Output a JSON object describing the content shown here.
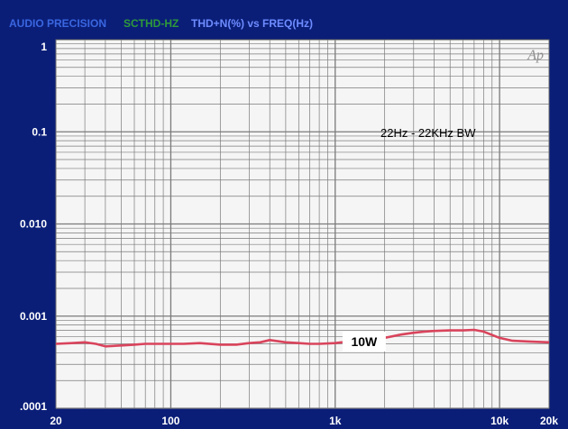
{
  "header": {
    "brand": "AUDIO PRECISION",
    "code": "SCTHD-HZ",
    "title": "THD+N(%) vs FREQ(Hz)"
  },
  "logo": "Ap",
  "colors": {
    "background": "#0a1e78",
    "plot_area": "#f5f5f5",
    "grid": "#7a7a7a",
    "trace": "#d9445c",
    "brand_text": "#3a66e0",
    "code_text": "#2e9a3a",
    "title_text": "#6e8cff"
  },
  "chart_data": {
    "type": "line",
    "xscale": "log",
    "yscale": "log",
    "xlim": [
      20,
      20000
    ],
    "ylim": [
      0.0001,
      1
    ],
    "x_ticks": [
      {
        "value": 20,
        "label": "20"
      },
      {
        "value": 100,
        "label": "100"
      },
      {
        "value": 1000,
        "label": "1k"
      },
      {
        "value": 10000,
        "label": "10k"
      },
      {
        "value": 20000,
        "label": "20k"
      }
    ],
    "y_ticks": [
      {
        "value": 1,
        "label": "1"
      },
      {
        "value": 0.1,
        "label": "0.1"
      },
      {
        "value": 0.01,
        "label": "0.010"
      },
      {
        "value": 0.001,
        "label": "0.001"
      },
      {
        "value": 0.0001,
        "label": ".0001"
      }
    ],
    "grid": true,
    "annotations": [
      "22Hz - 22KHz BW"
    ],
    "series": [
      {
        "name": "10W",
        "color": "#d9445c",
        "x": [
          20,
          25,
          30,
          35,
          40,
          50,
          60,
          70,
          80,
          100,
          120,
          150,
          200,
          250,
          300,
          350,
          400,
          500,
          600,
          700,
          800,
          1000,
          1200,
          1500,
          2000,
          2500,
          3000,
          3500,
          4000,
          5000,
          6000,
          7000,
          8000,
          10000,
          12000,
          15000,
          20000
        ],
        "y": [
          0.0005,
          0.00051,
          0.00052,
          0.0005,
          0.00047,
          0.00048,
          0.00049,
          0.0005,
          0.0005,
          0.0005,
          0.0005,
          0.00051,
          0.00049,
          0.00049,
          0.00051,
          0.00052,
          0.00055,
          0.00052,
          0.00051,
          0.0005,
          0.0005,
          0.00051,
          0.00053,
          0.00055,
          0.00058,
          0.00063,
          0.00066,
          0.00068,
          0.00069,
          0.0007,
          0.0007,
          0.00071,
          0.00068,
          0.00058,
          0.00054,
          0.00053,
          0.00052
        ]
      }
    ]
  }
}
